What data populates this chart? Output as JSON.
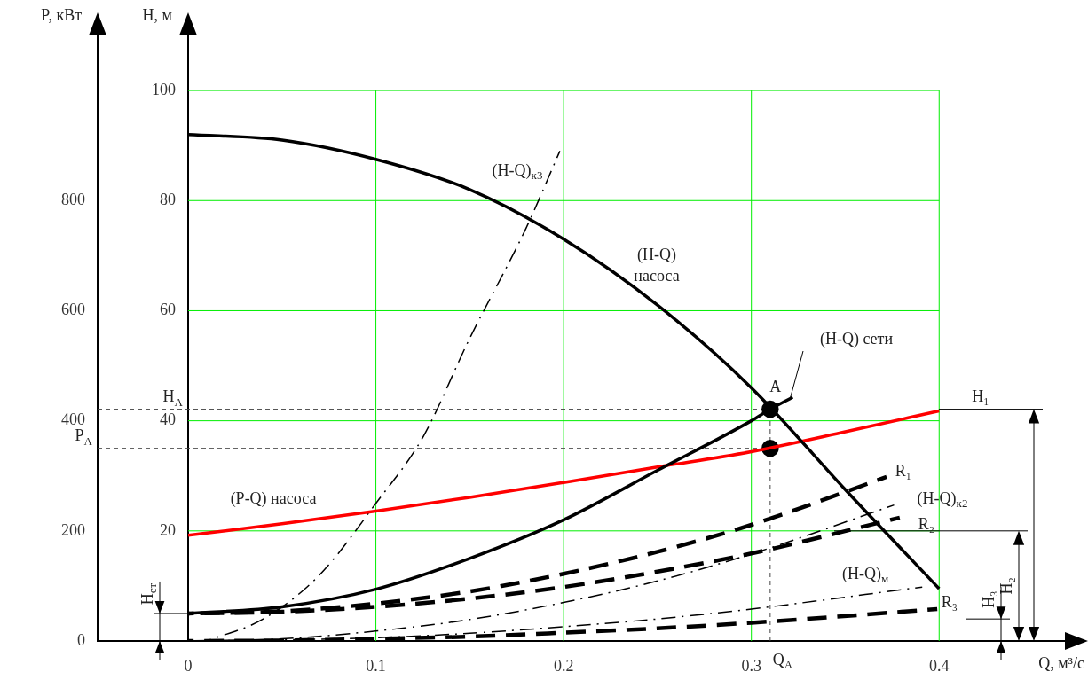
{
  "chart_data": {
    "type": "line",
    "xlabel": "Q, м³/с",
    "ylabel": "H, м",
    "y2label": "P, кВт",
    "xlim": [
      0,
      0.467
    ],
    "xticks": [
      0,
      0.1,
      0.2,
      0.3,
      0.4
    ],
    "ylim": [
      0,
      110
    ],
    "yticks": [
      20,
      40,
      60,
      80,
      100
    ],
    "y2lim": [
      0,
      1100
    ],
    "y2ticks": [
      0,
      200,
      400,
      600,
      800
    ],
    "grid": true,
    "legend": false,
    "series": [
      {
        "name": "(H-Q) насоса",
        "color": "#000000",
        "line_style": "solid",
        "marker": "none",
        "x": [
          0,
          0.05,
          0.1,
          0.15,
          0.2,
          0.25,
          0.3,
          0.35,
          0.4
        ],
        "values": [
          92,
          91,
          87.5,
          82,
          73,
          61,
          46,
          27.5,
          9.5
        ]
      },
      {
        "name": "(H-Q) сети",
        "color": "#000000",
        "line_style": "solid",
        "marker": "none",
        "x": [
          0,
          0.05,
          0.1,
          0.15,
          0.2,
          0.25,
          0.3,
          0.31,
          0.322
        ],
        "values": [
          5,
          6.2,
          9.4,
          15,
          22,
          31,
          40,
          42.1,
          44.3
        ]
      },
      {
        "name": "(P-Q) насоса",
        "axis": "y2",
        "color": "#ff0000",
        "line_style": "solid",
        "marker": "none",
        "x": [
          0,
          0.05,
          0.1,
          0.15,
          0.2,
          0.25,
          0.3,
          0.35,
          0.4
        ],
        "values": [
          192,
          213,
          236,
          261,
          288,
          316,
          344,
          380,
          418
        ]
      },
      {
        "name": "(H-Q)$_{к3}$",
        "color": "#000000",
        "line_style": "dashdot",
        "marker": "none",
        "x": [
          0.01,
          0.04,
          0.07,
          0.1,
          0.125,
          0.15,
          0.18,
          0.198
        ],
        "values": [
          0,
          4,
          12,
          25,
          37,
          55,
          75,
          89
        ]
      },
      {
        "name": "R₁",
        "color": "#000000",
        "line_style": "dashed",
        "marker": "none",
        "x": [
          0,
          0.05,
          0.1,
          0.15,
          0.2,
          0.25,
          0.3,
          0.372
        ],
        "values": [
          5,
          5.4,
          6.8,
          9,
          12.2,
          16.2,
          21.1,
          29.8
        ]
      },
      {
        "name": "R₂",
        "color": "#000000",
        "line_style": "dashed",
        "marker": "none",
        "x": [
          0,
          0.05,
          0.1,
          0.15,
          0.2,
          0.25,
          0.3,
          0.379
        ],
        "values": [
          5,
          5.3,
          6.2,
          7.7,
          9.8,
          12.6,
          15.9,
          22.4
        ]
      },
      {
        "name": "(H-Q)$_{к2}$",
        "color": "#000000",
        "line_style": "dashdot",
        "marker": "none",
        "x": [
          0,
          0.05,
          0.1,
          0.15,
          0.2,
          0.25,
          0.3,
          0.376
        ],
        "values": [
          0,
          0.4,
          1.8,
          3.9,
          7,
          10.9,
          15.8,
          24.7
        ]
      },
      {
        "name": "(H-Q)$_{м}$",
        "color": "#000000",
        "line_style": "dashdot",
        "marker": "none",
        "x": [
          0,
          0.05,
          0.1,
          0.15,
          0.2,
          0.25,
          0.3,
          0.391
        ],
        "values": [
          0,
          0.2,
          0.6,
          1.4,
          2.6,
          4,
          5.8,
          9.8
        ]
      },
      {
        "name": "R₃",
        "color": "#000000",
        "line_style": "dashed",
        "marker": "none",
        "x": [
          0,
          0.05,
          0.1,
          0.15,
          0.2,
          0.25,
          0.3,
          0.399
        ],
        "values": [
          0,
          0.1,
          0.4,
          0.8,
          1.5,
          2.3,
          3.3,
          5.8
        ]
      },
      {
        "type": "scatter",
        "color": "#000000",
        "marker": "circle",
        "x": [
          0.31
        ],
        "values": [
          42.1
        ]
      },
      {
        "type": "scatter",
        "axis": "y2",
        "color": "#000000",
        "marker": "circle",
        "x": [
          0.31
        ],
        "values": [
          350
        ]
      }
    ],
    "ref_lines": [
      {
        "axis": "y",
        "value": 42.1,
        "label": "H$_{A}$",
        "line_style": "dashed"
      },
      {
        "axis": "y2",
        "value": 350,
        "label": "P$_{A}$",
        "line_style": "dashed"
      },
      {
        "axis": "x",
        "value": 0.31,
        "label": "Q$_{A}$",
        "line_style": "dashed"
      },
      {
        "axis": "y",
        "value": 42.1,
        "label": "H₁",
        "line_style": "solid"
      },
      {
        "axis": "y",
        "value": 20,
        "label": "H₂",
        "line_style": "solid"
      },
      {
        "axis": "y",
        "value": 4,
        "label": "H₃",
        "line_style": "solid"
      },
      {
        "axis": "y",
        "value": 5,
        "label": "H$_{ст}$",
        "line_style": "solid"
      }
    ],
    "annotations": [
      {
        "text": "A",
        "x": 0.31,
        "y": 42.1
      }
    ]
  }
}
